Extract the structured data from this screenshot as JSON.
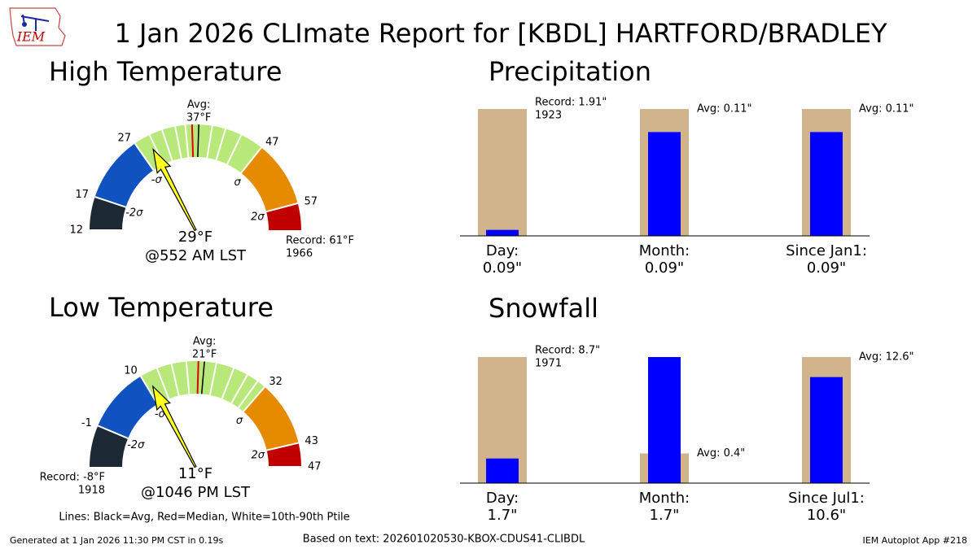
{
  "title": "1 Jan 2026 CLImate Report for [KBDL] HARTFORD/BRADLEY",
  "logo_text": "IEM",
  "note": "Lines: Black=Avg, Red=Median, White=10th-90th Ptile",
  "footer": {
    "generated": "Generated at 1 Jan 2026 11:30 PM CST in 0.19s",
    "source": "Based on text: 202601020530-KBOX-CDUS41-CLIBDL",
    "app": "IEM Autoplot App #218"
  },
  "chart_data": [
    {
      "type": "gauge",
      "title": "High Temperature",
      "value": 29,
      "value_label": "29°F",
      "time_label": "@552 AM LST",
      "lim": [
        12,
        61
      ],
      "ticks": [
        12,
        17,
        27,
        47,
        57
      ],
      "band_colors": [
        "#1c2833",
        "#0f52c0",
        "#b8e87a",
        "#e68a00",
        "#c00000"
      ],
      "sigma_labels": [
        {
          "value": 17,
          "label": "-2σ"
        },
        {
          "value": 27,
          "label": "-σ"
        },
        {
          "value": 47,
          "label": "σ"
        },
        {
          "value": 57,
          "label": "2σ"
        }
      ],
      "avg": 37,
      "avg_labels": [
        "Avg:",
        "37°F"
      ],
      "median": 36,
      "percentiles": [
        29.5,
        31.5,
        33.5,
        35,
        39,
        41,
        43.5
      ],
      "record": 61,
      "record_labels": [
        "Record: 61°F",
        "1966"
      ],
      "needle_color": "#ffff20"
    },
    {
      "type": "bar",
      "title": "Precipitation",
      "categories": [
        "Day:",
        "Month:",
        "Since Jan1:"
      ],
      "series": [
        {
          "color": "#d2b48c",
          "values": [
            1.91,
            0.11,
            0.11
          ],
          "value_labels": [
            "Record: 1.91\"",
            "Avg: 0.11\"",
            "Avg: 0.11\""
          ]
        },
        {
          "color": "#0000ff",
          "values": [
            0.09,
            0.09,
            0.09
          ],
          "value_labels": [
            "0.09\"",
            "0.09\"",
            "0.09\""
          ]
        }
      ],
      "record_years": [
        "1923",
        null,
        null
      ]
    },
    {
      "type": "gauge",
      "title": "Low Temperature",
      "value": 11,
      "value_label": "11°F",
      "time_label": "@1046 PM LST",
      "lim": [
        -8,
        47
      ],
      "ticks": [
        -1,
        10,
        32,
        43,
        47
      ],
      "band_colors": [
        "#1c2833",
        "#0f52c0",
        "#b8e87a",
        "#e68a00",
        "#c00000"
      ],
      "sigma_labels": [
        {
          "value": -1,
          "label": "-2σ"
        },
        {
          "value": 10,
          "label": "-σ"
        },
        {
          "value": 32,
          "label": "σ"
        },
        {
          "value": 43,
          "label": "2σ"
        }
      ],
      "avg": 21,
      "avg_labels": [
        "Avg:",
        "21°F"
      ],
      "median": 20,
      "percentiles": [
        13,
        15.5,
        18,
        23,
        26,
        28.5,
        30.5
      ],
      "record": -8,
      "record_labels": [
        "Record: -8°F",
        "1918"
      ],
      "needle_color": "#ffff20"
    },
    {
      "type": "bar",
      "title": "Snowfall",
      "categories": [
        "Day:",
        "Month:",
        "Since Jul1:"
      ],
      "series": [
        {
          "color": "#d2b48c",
          "values": [
            8.7,
            0.4,
            12.6
          ],
          "value_labels": [
            "Record: 8.7\"",
            "Avg: 0.4\"",
            "Avg: 12.6\""
          ]
        },
        {
          "color": "#0000ff",
          "values": [
            1.7,
            1.7,
            10.6
          ],
          "value_labels": [
            "1.7\"",
            "1.7\"",
            "10.6\""
          ]
        }
      ],
      "record_years": [
        "1971",
        null,
        null
      ]
    }
  ]
}
